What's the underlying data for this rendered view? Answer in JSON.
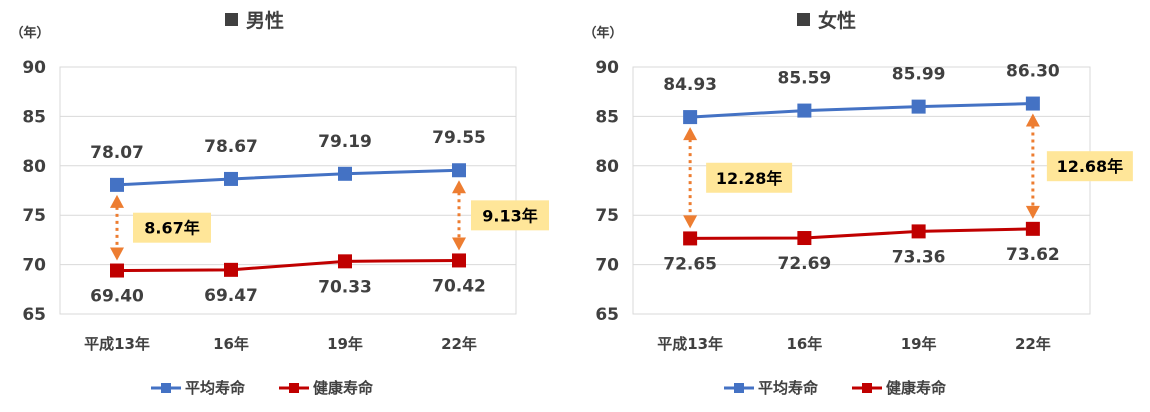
{
  "chart_data": [
    {
      "type": "line",
      "title": "男性",
      "title_marker": "■",
      "y_unit": "（年）",
      "categories": [
        "平成13年",
        "16年",
        "19年",
        "22年"
      ],
      "ylim": [
        65,
        90
      ],
      "yticks": [
        65,
        70,
        75,
        80,
        85,
        90
      ],
      "grid": true,
      "legend_position": "bottom",
      "series": [
        {
          "name": "平均寿命",
          "values": [
            78.07,
            78.67,
            79.19,
            79.55
          ],
          "value_labels": [
            "78.07",
            "78.67",
            "79.19",
            "79.55"
          ],
          "color": "#4472C4",
          "label_side": "above"
        },
        {
          "name": "健康寿命",
          "values": [
            69.4,
            69.47,
            70.33,
            70.42
          ],
          "value_labels": [
            "69.40",
            "69.47",
            "70.33",
            "70.42"
          ],
          "color": "#C00000",
          "label_side": "below"
        }
      ],
      "gap_annotations": [
        {
          "category_index": 0,
          "label": "8.67年",
          "color": "#ED7D31",
          "label_bg": "#FFE699"
        },
        {
          "category_index": 3,
          "label": "9.13年",
          "color": "#ED7D31",
          "label_bg": "#FFE699"
        }
      ]
    },
    {
      "type": "line",
      "title": "女性",
      "title_marker": "■",
      "y_unit": "（年）",
      "categories": [
        "平成13年",
        "16年",
        "19年",
        "22年"
      ],
      "ylim": [
        65,
        90
      ],
      "yticks": [
        65,
        70,
        75,
        80,
        85,
        90
      ],
      "grid": true,
      "legend_position": "bottom",
      "series": [
        {
          "name": "平均寿命",
          "values": [
            84.93,
            85.59,
            85.99,
            86.3
          ],
          "value_labels": [
            "84.93",
            "85.59",
            "85.99",
            "86.30"
          ],
          "color": "#4472C4",
          "label_side": "above"
        },
        {
          "name": "健康寿命",
          "values": [
            72.65,
            72.69,
            73.36,
            73.62
          ],
          "value_labels": [
            "72.65",
            "72.69",
            "73.36",
            "73.62"
          ],
          "color": "#C00000",
          "label_side": "below"
        }
      ],
      "gap_annotations": [
        {
          "category_index": 0,
          "label": "12.28年",
          "color": "#ED7D31",
          "label_bg": "#FFE699"
        },
        {
          "category_index": 3,
          "label": "12.68年",
          "color": "#ED7D31",
          "label_bg": "#FFE699"
        }
      ]
    }
  ]
}
